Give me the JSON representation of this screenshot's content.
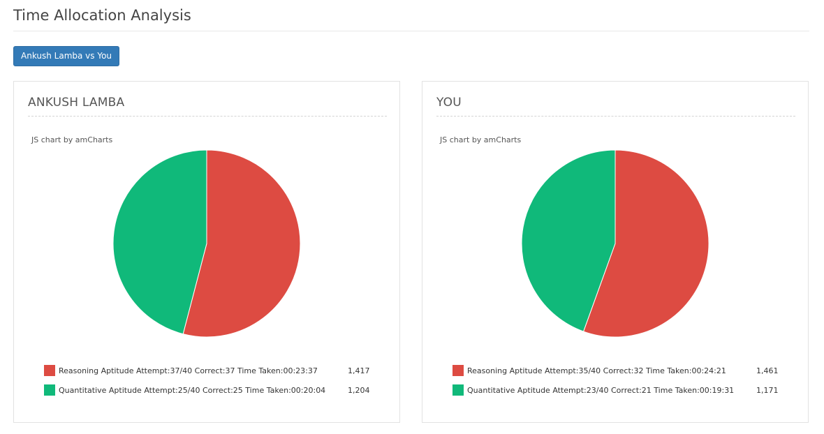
{
  "page": {
    "title": "Time Allocation Analysis"
  },
  "compare_button": {
    "label": "Ankush Lamba vs You"
  },
  "colors": {
    "reasoning": "#dd4b42",
    "quantitative": "#10b97a",
    "button": "#337ab7"
  },
  "panels": [
    {
      "title": "ANKUSH LAMBA",
      "credit": "JS chart by amCharts",
      "legend": [
        {
          "label": "Reasoning Aptitude Attempt:37/40 Correct:37 Time Taken:00:23:37",
          "value": "1,417"
        },
        {
          "label": "Quantitative Aptitude Attempt:25/40 Correct:25 Time Taken:00:20:04",
          "value": "1,204"
        }
      ]
    },
    {
      "title": "YOU",
      "credit": "JS chart by amCharts",
      "legend": [
        {
          "label": "Reasoning Aptitude Attempt:35/40 Correct:32 Time Taken:00:24:21",
          "value": "1,461"
        },
        {
          "label": "Quantitative Aptitude Attempt:23/40 Correct:21 Time Taken:00:19:31",
          "value": "1,171"
        }
      ]
    }
  ],
  "chart_data": [
    {
      "type": "pie",
      "title": "ANKUSH LAMBA",
      "categories": [
        "Reasoning Aptitude",
        "Quantitative Aptitude"
      ],
      "values": [
        1417,
        1204
      ],
      "colors": [
        "#dd4b42",
        "#10b97a"
      ],
      "legend_position": "bottom"
    },
    {
      "type": "pie",
      "title": "YOU",
      "categories": [
        "Reasoning Aptitude",
        "Quantitative Aptitude"
      ],
      "values": [
        1461,
        1171
      ],
      "colors": [
        "#dd4b42",
        "#10b97a"
      ],
      "legend_position": "bottom"
    }
  ]
}
